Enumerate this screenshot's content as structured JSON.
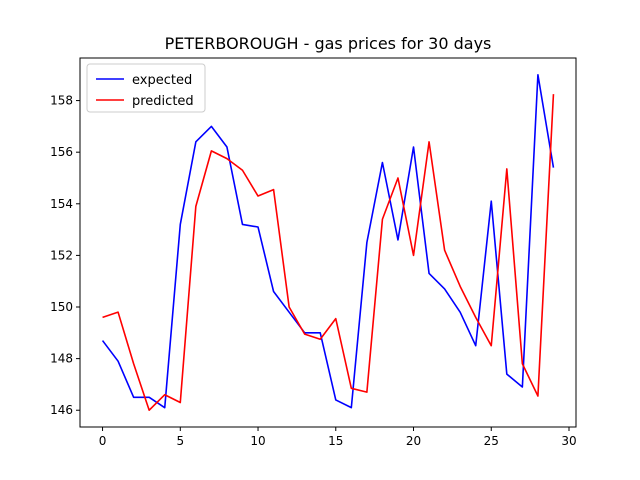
{
  "chart_data": {
    "type": "line",
    "title": "PETERBOROUGH - gas prices for 30 days",
    "xlabel": "",
    "ylabel": "",
    "xlim": [
      -1.45,
      30.45
    ],
    "ylim": [
      145.35,
      159.65
    ],
    "xticks": [
      0,
      5,
      10,
      15,
      20,
      25,
      30
    ],
    "yticks": [
      146,
      148,
      150,
      152,
      154,
      156,
      158
    ],
    "grid": false,
    "legend": "top-left",
    "x": [
      0,
      1,
      2,
      3,
      4,
      5,
      6,
      7,
      8,
      9,
      10,
      11,
      12,
      13,
      14,
      15,
      16,
      17,
      18,
      19,
      20,
      21,
      22,
      23,
      24,
      25,
      26,
      27,
      28,
      29
    ],
    "series": [
      {
        "name": "expected",
        "color": "#0000ff",
        "values": [
          148.7,
          147.9,
          146.5,
          146.5,
          146.1,
          153.2,
          156.4,
          157.0,
          156.2,
          153.2,
          153.1,
          150.6,
          149.8,
          149.0,
          149.0,
          146.4,
          146.1,
          152.5,
          155.6,
          152.6,
          156.2,
          151.3,
          150.7,
          149.8,
          148.5,
          154.1,
          147.4,
          146.9,
          159.0,
          155.4
        ]
      },
      {
        "name": "predicted",
        "color": "#ff0000",
        "values": [
          149.6,
          149.8,
          147.8,
          146.0,
          146.6,
          146.3,
          153.9,
          156.05,
          155.75,
          155.3,
          154.3,
          154.55,
          150.0,
          148.95,
          148.75,
          149.55,
          146.85,
          146.7,
          153.4,
          155.0,
          152.0,
          156.4,
          152.2,
          150.8,
          149.6,
          148.5,
          155.35,
          147.8,
          146.55,
          158.25
        ]
      }
    ]
  }
}
